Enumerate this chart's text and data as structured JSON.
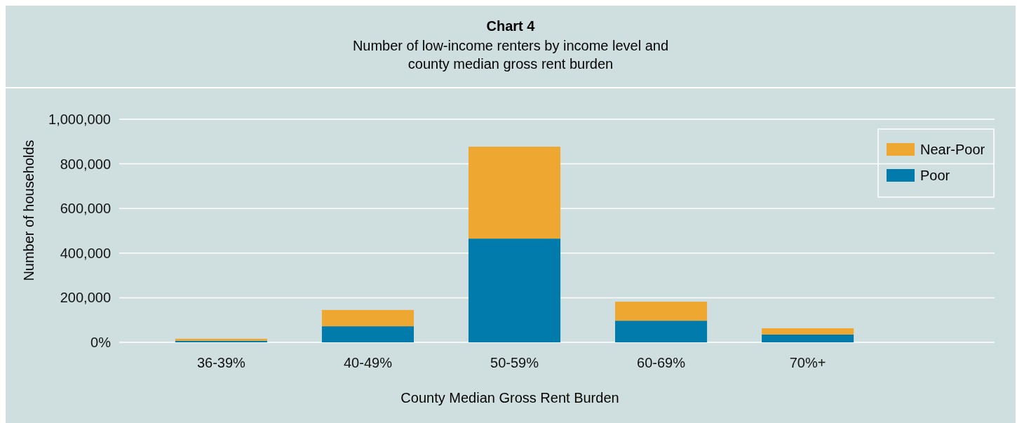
{
  "chart_data": {
    "type": "bar",
    "title": "Chart 4",
    "subtitle": "Number of low-income renters by income level and county median gross rent burden",
    "xlabel": "County Median Gross Rent Burden",
    "ylabel": "Number of households",
    "categories": [
      "36-39%",
      "40-49%",
      "50-59%",
      "60-69%",
      "70%+"
    ],
    "series": [
      {
        "name": "Poor",
        "color": "#007bab",
        "values": [
          7000,
          72000,
          465000,
          97000,
          35000
        ]
      },
      {
        "name": "Near-Poor",
        "color": "#eea731",
        "values": [
          9000,
          73000,
          412000,
          85000,
          28000
        ]
      }
    ],
    "stacked": true,
    "ylim": [
      0,
      1000000
    ],
    "yticks": [
      {
        "value": 0,
        "label": "0%"
      },
      {
        "value": 200000,
        "label": "200,000"
      },
      {
        "value": 400000,
        "label": "400,000"
      },
      {
        "value": 600000,
        "label": "600,000"
      },
      {
        "value": 800000,
        "label": "800,000"
      },
      {
        "value": 1000000,
        "label": "1,000,000"
      }
    ],
    "grid": "y",
    "legend": "top right"
  }
}
